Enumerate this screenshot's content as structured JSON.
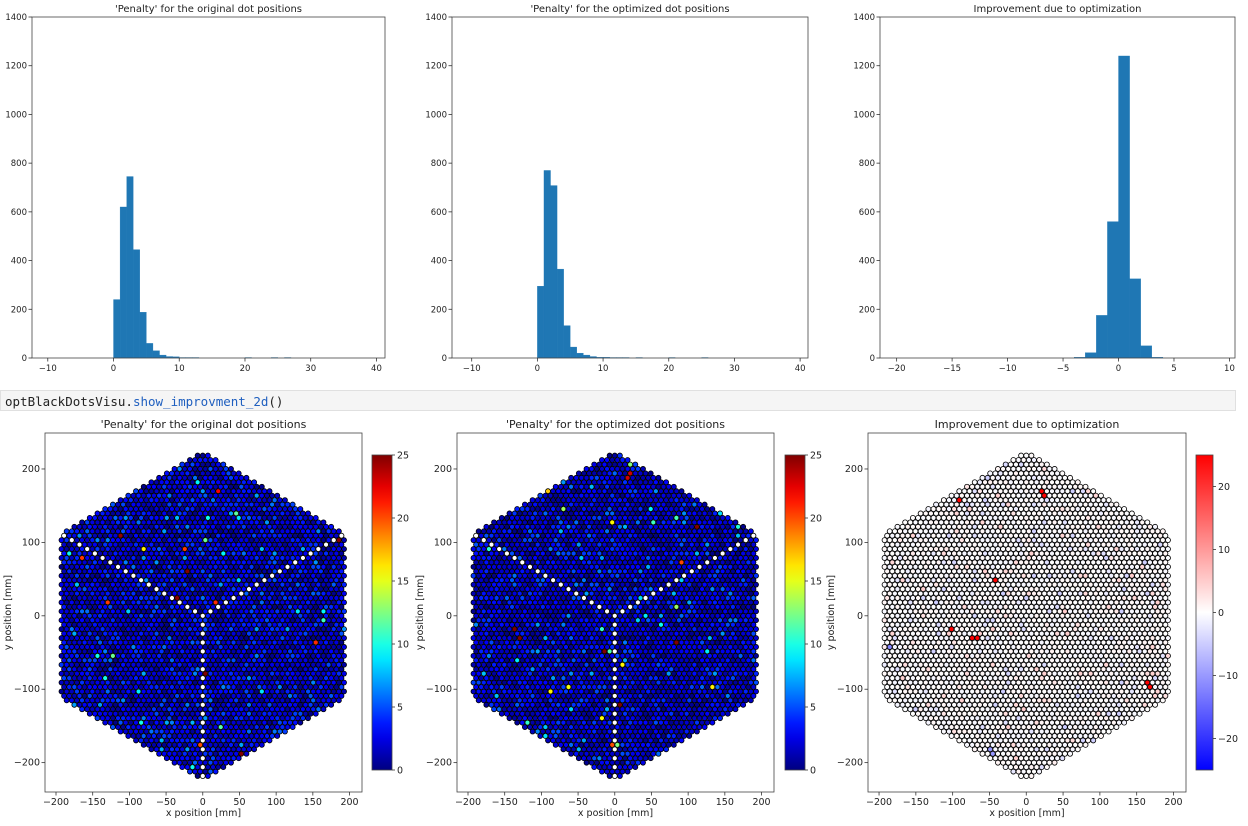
{
  "code_cell": {
    "object": "optBlackDotsVisu.",
    "method": "show_improvment_2d",
    "call": "()"
  },
  "colors": {
    "bar": "#1f77b4",
    "edge": "#000000",
    "frame": "#444444"
  },
  "chart_data": [
    {
      "type": "bar",
      "subtype": "histogram",
      "title": "'Penalty' for the original dot positions",
      "bin_start": 0,
      "bin_width": 1,
      "counts": [
        240,
        620,
        745,
        445,
        188,
        60,
        30,
        12,
        6,
        5,
        2,
        2,
        2,
        0,
        0,
        0,
        0,
        0,
        0,
        0,
        2,
        0,
        0,
        0,
        2,
        0,
        2
      ],
      "xlim": [
        -12.4,
        41.3
      ],
      "ylim": [
        0,
        1400
      ],
      "xticks": [
        -10,
        0,
        10,
        20,
        30,
        40
      ],
      "xtick_labels": [
        "−10",
        "0",
        "10",
        "20",
        "30",
        "40"
      ],
      "yticks": [
        0,
        200,
        400,
        600,
        800,
        1000,
        1200,
        1400
      ],
      "ytick_labels": [
        "0",
        "200",
        "400",
        "600",
        "800",
        "1000",
        "1200",
        "1400"
      ]
    },
    {
      "type": "bar",
      "subtype": "histogram",
      "title": "'Penalty' for the optimized dot positions",
      "bin_start": 0,
      "bin_width": 1,
      "counts": [
        295,
        770,
        708,
        365,
        133,
        45,
        20,
        12,
        6,
        3,
        3,
        2,
        2,
        2,
        0,
        2,
        0,
        0,
        0,
        0,
        2,
        0,
        0,
        0,
        0,
        2
      ],
      "xlim": [
        -13.0,
        41.2
      ],
      "ylim": [
        0,
        1400
      ],
      "xticks": [
        -10,
        0,
        10,
        20,
        30,
        40
      ],
      "xtick_labels": [
        "−10",
        "0",
        "10",
        "20",
        "30",
        "40"
      ],
      "yticks": [
        0,
        200,
        400,
        600,
        800,
        1000,
        1200,
        1400
      ],
      "ytick_labels": [
        "0",
        "200",
        "400",
        "600",
        "800",
        "1000",
        "1200",
        "1400"
      ]
    },
    {
      "type": "bar",
      "subtype": "histogram",
      "title": "Improvement due to optimization",
      "bin_start": -4,
      "bin_width": 1,
      "counts": [
        3,
        22,
        175,
        560,
        1240,
        325,
        50,
        3
      ],
      "xlim": [
        -21.5,
        10.5
      ],
      "ylim": [
        0,
        1400
      ],
      "xticks": [
        -20,
        -15,
        -10,
        -5,
        0,
        5,
        10
      ],
      "xtick_labels": [
        "−20",
        "−15",
        "−10",
        "−5",
        "0",
        "5",
        "10"
      ],
      "yticks": [
        0,
        200,
        400,
        600,
        800,
        1000,
        1200,
        1400
      ],
      "ytick_labels": [
        "0",
        "200",
        "400",
        "600",
        "800",
        "1000",
        "1200",
        "1400"
      ]
    },
    {
      "type": "scatter",
      "title": "'Penalty' for the original dot positions",
      "xlabel": "x position [mm]",
      "ylabel": "y position [mm]",
      "xlim": [
        -215,
        217
      ],
      "ylim": [
        -240,
        249
      ],
      "xticks": [
        -200,
        -150,
        -100,
        -50,
        0,
        50,
        100,
        150,
        200
      ],
      "xtick_labels": [
        "−200",
        "−150",
        "−100",
        "−50",
        "0",
        "50",
        "100",
        "150",
        "200"
      ],
      "yticks": [
        -200,
        -100,
        0,
        100,
        200
      ],
      "ytick_labels": [
        "−200",
        "−100",
        "0",
        "100",
        "200"
      ],
      "hexagon_radius_mm": 225,
      "pitch_mm": 7,
      "values_from_histogram": 0,
      "colormap": "jet",
      "clim": [
        0,
        25
      ],
      "cbar_ticks": [
        0,
        5,
        10,
        15,
        20,
        25
      ],
      "cbar_tick_labels": [
        "0",
        "5",
        "10",
        "15",
        "20",
        "25"
      ],
      "highlights": [
        {
          "x": -175,
          "y": 128,
          "v": 24
        },
        {
          "x": 20,
          "y": 168,
          "v": 22
        },
        {
          "x": -80,
          "y": 92,
          "v": 16
        },
        {
          "x": -5,
          "y": -178,
          "v": 20
        }
      ]
    },
    {
      "type": "scatter",
      "title": "'Penalty' for the optimized dot positions",
      "xlabel": "x position [mm]",
      "ylabel": "y position [mm]",
      "xlim": [
        -215,
        217
      ],
      "ylim": [
        -240,
        249
      ],
      "xticks": [
        -200,
        -150,
        -100,
        -50,
        0,
        50,
        100,
        150,
        200
      ],
      "xtick_labels": [
        "−200",
        "−150",
        "−100",
        "−50",
        "0",
        "50",
        "100",
        "150",
        "200"
      ],
      "yticks": [
        -200,
        -100,
        0,
        100,
        200
      ],
      "ytick_labels": [
        "−200",
        "−100",
        "0",
        "100",
        "200"
      ],
      "hexagon_radius_mm": 225,
      "pitch_mm": 7,
      "values_from_histogram": 1,
      "colormap": "jet",
      "clim": [
        0,
        25
      ],
      "cbar_ticks": [
        0,
        5,
        10,
        15,
        20,
        25
      ],
      "cbar_tick_labels": [
        "0",
        "5",
        "10",
        "15",
        "20",
        "25"
      ],
      "highlights": [
        {
          "x": -175,
          "y": 128,
          "v": 24
        },
        {
          "x": 20,
          "y": 190,
          "v": 23
        },
        {
          "x": -90,
          "y": 172,
          "v": 17
        },
        {
          "x": -5,
          "y": -178,
          "v": 20
        }
      ]
    },
    {
      "type": "scatter",
      "title": "Improvement due to optimization",
      "xlabel": "x position [mm]",
      "ylabel": "y position [mm]",
      "xlim": [
        -215,
        217
      ],
      "ylim": [
        -240,
        249
      ],
      "xticks": [
        -200,
        -150,
        -100,
        -50,
        0,
        50,
        100,
        150,
        200
      ],
      "xtick_labels": [
        "−200",
        "−150",
        "−100",
        "−50",
        "0",
        "50",
        "100",
        "150",
        "200"
      ],
      "yticks": [
        -200,
        -100,
        0,
        100,
        200
      ],
      "ytick_labels": [
        "−200",
        "−100",
        "0",
        "100",
        "200"
      ],
      "hexagon_radius_mm": 225,
      "pitch_mm": 7,
      "values_from_histogram": 2,
      "colormap": "bwr",
      "clim": [
        -25,
        25
      ],
      "cbar_ticks": [
        -20,
        -10,
        0,
        10,
        20
      ],
      "cbar_tick_labels": [
        "−20",
        "−10",
        "0",
        "10",
        "20"
      ],
      "highlights": [
        {
          "x": -90,
          "y": 159,
          "v": 25
        },
        {
          "x": 22,
          "y": 166,
          "v": 25
        },
        {
          "x": -41,
          "y": 50,
          "v": 25
        },
        {
          "x": -104,
          "y": -18,
          "v": 25
        },
        {
          "x": -70,
          "y": -30,
          "v": 25
        },
        {
          "x": 167,
          "y": -94,
          "v": 25
        },
        {
          "x": -187,
          "y": -42,
          "v": -12
        },
        {
          "x": -48,
          "y": -185,
          "v": -10
        }
      ]
    }
  ]
}
